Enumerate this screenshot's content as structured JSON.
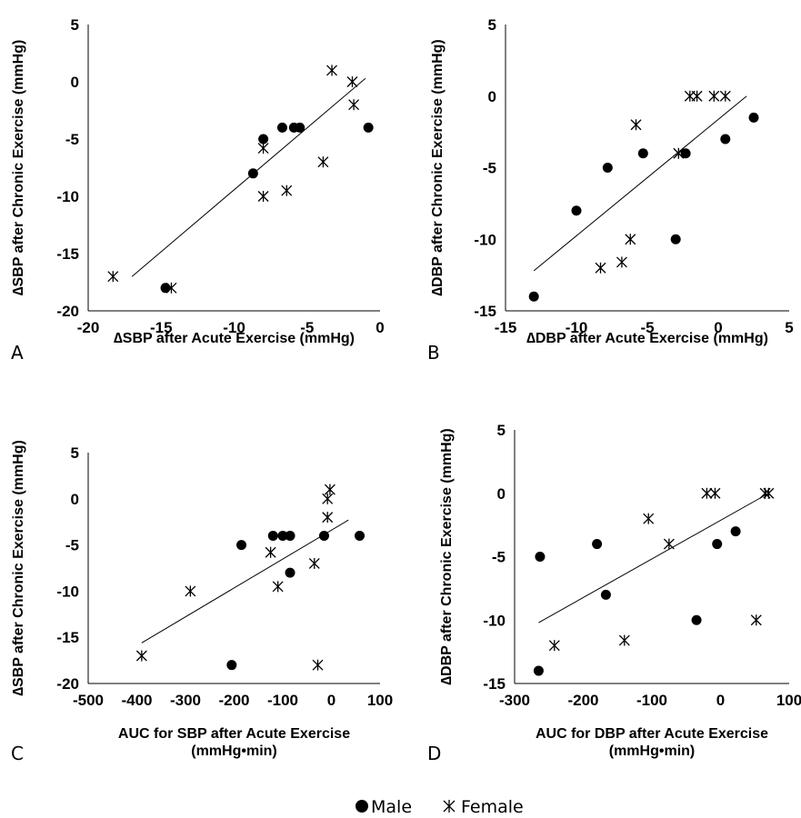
{
  "chart_data": [
    {
      "type": "scatter",
      "panel_label": "A",
      "xlabel": "∆SBP after Acute Exercise (mmHg)",
      "ylabel": "∆SBP after Chronic Exercise (mmHg)",
      "xlim": [
        -20,
        0
      ],
      "ylim": [
        -20,
        5
      ],
      "xticks": [
        -20,
        -15,
        -10,
        -5,
        0
      ],
      "yticks": [
        -20,
        -15,
        -10,
        -5,
        0,
        5
      ],
      "grid": false,
      "series": [
        {
          "name": "Male",
          "marker": "circle",
          "points": [
            [
              -14.7,
              -18
            ],
            [
              -8.7,
              -8
            ],
            [
              -8,
              -5
            ],
            [
              -6.7,
              -4
            ],
            [
              -5.9,
              -4
            ],
            [
              -5.5,
              -4
            ],
            [
              -0.8,
              -4
            ]
          ]
        },
        {
          "name": "Female",
          "marker": "asterisk",
          "points": [
            [
              -18.3,
              -17
            ],
            [
              -14.3,
              -18
            ],
            [
              -8,
              -5.8
            ],
            [
              -8,
              -10
            ],
            [
              -6.4,
              -9.5
            ],
            [
              -3.9,
              -7
            ],
            [
              -3.3,
              1
            ],
            [
              -1.9,
              0
            ],
            [
              -1.8,
              -2
            ]
          ]
        }
      ],
      "trendline": {
        "x": [
          -17,
          -1
        ],
        "y": [
          -17,
          0.3
        ]
      }
    },
    {
      "type": "scatter",
      "panel_label": "B",
      "xlabel": "∆DBP after Acute Exercise (mmHg)",
      "ylabel": "∆DBP after Chronic Exercise  (mmHg)",
      "xlim": [
        -15,
        5
      ],
      "ylim": [
        -15,
        5
      ],
      "xticks": [
        -15,
        -10,
        -5,
        0,
        5
      ],
      "yticks": [
        -15,
        -10,
        -5,
        0,
        5
      ],
      "grid": false,
      "series": [
        {
          "name": "Male",
          "marker": "circle",
          "points": [
            [
              -13,
              -14
            ],
            [
              -10,
              -8
            ],
            [
              -7.8,
              -5
            ],
            [
              -5.3,
              -4
            ],
            [
              -3,
              -10
            ],
            [
              -2.3,
              -4
            ],
            [
              0.5,
              -3
            ],
            [
              2.5,
              -1.5
            ]
          ]
        },
        {
          "name": "Female",
          "marker": "asterisk",
          "points": [
            [
              -8.3,
              -12
            ],
            [
              -6.8,
              -11.6
            ],
            [
              -6.2,
              -10
            ],
            [
              -5.8,
              -2
            ],
            [
              -2.8,
              -4
            ],
            [
              -2,
              0
            ],
            [
              -1.5,
              0
            ],
            [
              -0.3,
              0
            ],
            [
              0.5,
              0
            ]
          ]
        }
      ],
      "trendline": {
        "x": [
          -13,
          2
        ],
        "y": [
          -12.2,
          0
        ]
      }
    },
    {
      "type": "scatter",
      "panel_label": "C",
      "xlabel": "AUC for SBP after Acute Exercise\n(mmHg•min)",
      "ylabel": "∆SBP after Chronic Exercise (mmHg)",
      "xlim": [
        -500,
        100
      ],
      "ylim": [
        -20,
        5
      ],
      "xticks": [
        -500,
        -400,
        -300,
        -200,
        -100,
        0,
        100
      ],
      "yticks": [
        -20,
        -15,
        -10,
        -5,
        0,
        5
      ],
      "grid": false,
      "series": [
        {
          "name": "Male",
          "marker": "circle",
          "points": [
            [
              -205,
              -18
            ],
            [
              -185,
              -5
            ],
            [
              -120,
              -4
            ],
            [
              -100,
              -4
            ],
            [
              -85,
              -8
            ],
            [
              -85,
              -4
            ],
            [
              -15,
              -4
            ],
            [
              58,
              -4
            ]
          ]
        },
        {
          "name": "Female",
          "marker": "asterisk",
          "points": [
            [
              -390,
              -17
            ],
            [
              -290,
              -10
            ],
            [
              -125,
              -5.8
            ],
            [
              -110,
              -9.5
            ],
            [
              -35,
              -7
            ],
            [
              -28,
              -18
            ],
            [
              -8,
              0
            ],
            [
              -8,
              -2
            ],
            [
              -3,
              1
            ]
          ]
        }
      ],
      "trendline": {
        "x": [
          -390,
          35
        ],
        "y": [
          -15.6,
          -2.3
        ]
      }
    },
    {
      "type": "scatter",
      "panel_label": "D",
      "xlabel": "AUC for DBP after Acute Exercise\n(mmHg•min)",
      "ylabel": "∆DBP after Chronic Exercise (mmHg)",
      "xlim": [
        -300,
        100
      ],
      "ylim": [
        -15,
        5
      ],
      "xticks": [
        -300,
        -200,
        -100,
        0,
        100
      ],
      "yticks": [
        -15,
        -10,
        -5,
        0,
        5
      ],
      "grid": false,
      "series": [
        {
          "name": "Male",
          "marker": "circle",
          "points": [
            [
              -265,
              -14
            ],
            [
              -263,
              -5
            ],
            [
              -180,
              -4
            ],
            [
              -167,
              -8
            ],
            [
              -35,
              -10
            ],
            [
              -5,
              -4
            ],
            [
              22,
              -3
            ]
          ]
        },
        {
          "name": "Female",
          "marker": "asterisk",
          "points": [
            [
              -242,
              -12
            ],
            [
              -140,
              -11.6
            ],
            [
              -105,
              -2
            ],
            [
              -75,
              -4
            ],
            [
              -20,
              0
            ],
            [
              -8,
              0
            ],
            [
              52,
              -10
            ],
            [
              65,
              0
            ],
            [
              70,
              0
            ]
          ]
        }
      ],
      "trendline": {
        "x": [
          -265,
          70
        ],
        "y": [
          -10.2,
          0
        ]
      }
    }
  ],
  "legend": [
    {
      "label": "Male",
      "marker": "circle"
    },
    {
      "label": "Female",
      "marker": "asterisk"
    }
  ]
}
